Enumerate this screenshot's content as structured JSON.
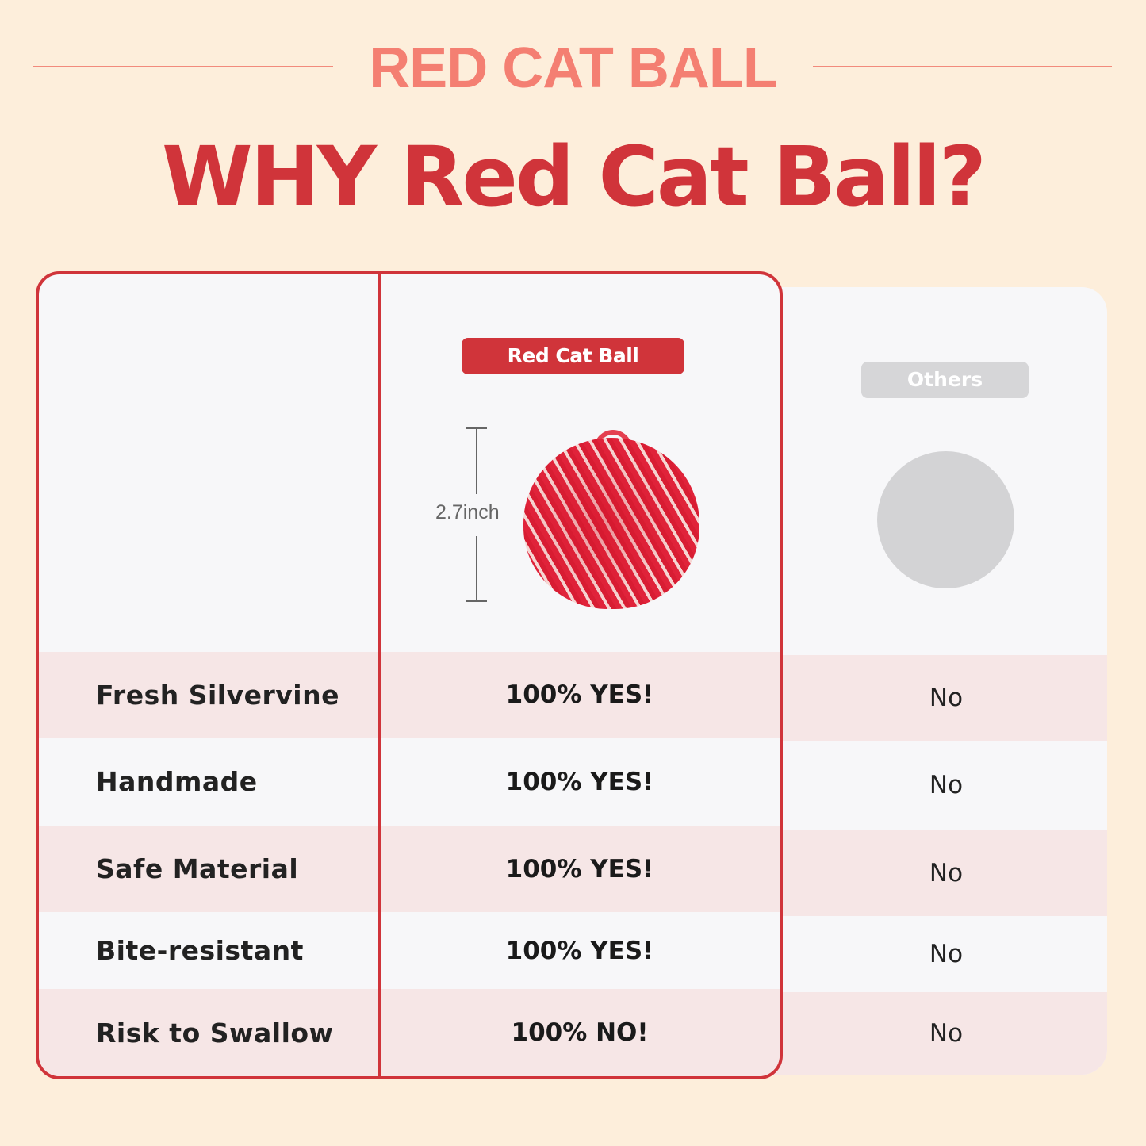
{
  "brand": "RED CAT BALL",
  "headline": "WHY Red Cat Ball?",
  "colors": {
    "accent": "#d0343a",
    "brand": "#f47f72",
    "background": "#fdeedb",
    "row_highlight": "#f6e6e6"
  },
  "columns": {
    "ours": "Red Cat Ball",
    "others": "Others"
  },
  "dimension": "2.7inch",
  "rows": [
    {
      "feature": "Fresh Silvervine",
      "ours": "100% YES!",
      "others": "No"
    },
    {
      "feature": "Handmade",
      "ours": "100% YES!",
      "others": "No"
    },
    {
      "feature": "Safe Material",
      "ours": "100% YES!",
      "others": "No"
    },
    {
      "feature": "Bite-resistant",
      "ours": "100% YES!",
      "others": "No"
    },
    {
      "feature": "Risk to Swallow",
      "ours": "100% NO!",
      "others": "No"
    }
  ]
}
